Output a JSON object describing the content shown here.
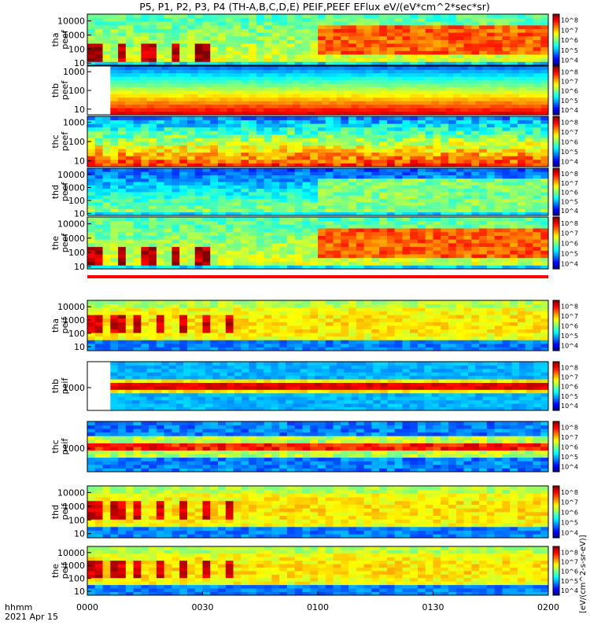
{
  "title": "P5, P1, P2, P3, P4 (TH-A,B,C,D,E) PEIF,PEEF EFlux eV/(eV*cm^2*sec*sr)",
  "footer": {
    "time_label": "hhmm",
    "date_label": "2021 Apr 15"
  },
  "x_ticks": [
    "0000",
    "0030",
    "0100",
    "0130",
    "0200"
  ],
  "colorbar_unit": "[eV/(cm^2-s-sr-eV)]",
  "chart_data": {
    "type": "heatmap",
    "xrange": [
      "00:00",
      "02:00"
    ],
    "yscale": "log",
    "panels": [
      {
        "label1": "tha",
        "label2": "peef",
        "yticks": [
          "10",
          "100",
          "1000",
          "10000"
        ],
        "ytick_values": [
          10,
          100,
          1000,
          10000
        ],
        "yrange": [
          7,
          30000
        ],
        "cb_ticks": [
          "10^4",
          "10^5",
          "10^6",
          "10^7",
          "10^8"
        ],
        "cb_range": [
          3.5,
          8.6
        ],
        "style": "variable",
        "hot_low": true,
        "start_frac": 0.0
      },
      {
        "label1": "thb",
        "label2": "peef",
        "yticks": [
          "10",
          "100",
          "1000"
        ],
        "ytick_values": [
          10,
          100,
          1000
        ],
        "yrange": [
          5,
          2000
        ],
        "cb_ticks": [
          "10^4",
          "10^5",
          "10^6",
          "10^7",
          "10^8"
        ],
        "cb_range": [
          3.5,
          8.6
        ],
        "style": "bands_b",
        "start_frac": 0.05
      },
      {
        "label1": "thc",
        "label2": "peef",
        "yticks": [
          "10",
          "100",
          "1000"
        ],
        "ytick_values": [
          10,
          100,
          1000
        ],
        "yrange": [
          5,
          2000
        ],
        "cb_ticks": [
          "10^4",
          "10^5",
          "10^6",
          "10^7",
          "10^8"
        ],
        "cb_range": [
          3.5,
          8.6
        ],
        "style": "bands_c",
        "start_frac": 0.0
      },
      {
        "label1": "thd",
        "label2": "peef",
        "yticks": [
          "10",
          "100",
          "1000",
          "10000"
        ],
        "ytick_values": [
          10,
          100,
          1000,
          10000
        ],
        "yrange": [
          7,
          30000
        ],
        "cb_ticks": [
          "10^4",
          "10^5",
          "10^6",
          "10^7",
          "10^8"
        ],
        "cb_range": [
          3.5,
          8.6
        ],
        "style": "variable_d",
        "start_frac": 0.0
      },
      {
        "label1": "the",
        "label2": "peef",
        "yticks": [
          "10",
          "100",
          "1000",
          "10000"
        ],
        "ytick_values": [
          10,
          100,
          1000,
          10000
        ],
        "yrange": [
          7,
          30000
        ],
        "cb_ticks": [
          "10^4",
          "10^5",
          "10^6",
          "10^7",
          "10^8"
        ],
        "cb_range": [
          3.5,
          8.6
        ],
        "style": "variable",
        "hot_low": true,
        "start_frac": 0.0
      },
      {
        "label1": "tha",
        "label2": "peif",
        "yticks": [
          "10",
          "100",
          "1000",
          "10000"
        ],
        "ytick_values": [
          10,
          100,
          1000,
          10000
        ],
        "yrange": [
          5,
          30000
        ],
        "cb_ticks": [
          "10^4",
          "10^5",
          "10^6",
          "10^7",
          "10^8"
        ],
        "cb_range": [
          3.5,
          8.6
        ],
        "style": "ion",
        "start_frac": 0.0
      },
      {
        "label1": "thb",
        "label2": "peif",
        "yticks": [
          "1000"
        ],
        "ytick_values": [
          1000
        ],
        "yrange": [
          50,
          30000
        ],
        "cb_ticks": [
          "10^4",
          "10^5",
          "10^6",
          "10^7",
          "10^8"
        ],
        "cb_range": [
          3.5,
          8.6
        ],
        "style": "ion_band_b",
        "start_frac": 0.05
      },
      {
        "label1": "thc",
        "label2": "peif",
        "yticks": [
          "1000"
        ],
        "ytick_values": [
          1000
        ],
        "yrange": [
          50,
          30000
        ],
        "cb_ticks": [
          "10^4",
          "10^5",
          "10^6",
          "10^7",
          "10^8"
        ],
        "cb_range": [
          3.5,
          8.6
        ],
        "style": "ion_band_c",
        "start_frac": 0.0
      },
      {
        "label1": "thd",
        "label2": "peif",
        "yticks": [
          "10",
          "100",
          "1000",
          "10000"
        ],
        "ytick_values": [
          10,
          100,
          1000,
          10000
        ],
        "yrange": [
          5,
          30000
        ],
        "cb_ticks": [
          "10^4",
          "10^5",
          "10^6",
          "10^7",
          "10^8"
        ],
        "cb_range": [
          3.5,
          8.6
        ],
        "style": "ion",
        "start_frac": 0.0
      },
      {
        "label1": "the",
        "label2": "peif",
        "yticks": [
          "10",
          "100",
          "1000",
          "10000"
        ],
        "ytick_values": [
          10,
          100,
          1000,
          10000
        ],
        "yrange": [
          5,
          30000
        ],
        "cb_ticks": [
          "10^4",
          "10^5",
          "10^6",
          "10^7",
          "10^8"
        ],
        "cb_range": [
          3.5,
          8.6
        ],
        "style": "ion",
        "start_frac": 0.0
      }
    ]
  }
}
